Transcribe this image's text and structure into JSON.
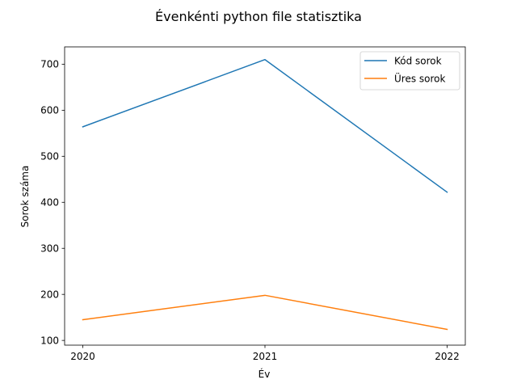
{
  "chart_data": {
    "type": "line",
    "title": "Évenkénti python file statisztika",
    "xlabel": "Év",
    "ylabel": "Sorok száma",
    "x": [
      "2020",
      "2021",
      "2022"
    ],
    "yticks": [
      100,
      200,
      300,
      400,
      500,
      600,
      700
    ],
    "ylim": [
      89.7,
      737.6
    ],
    "grid": false,
    "legend_position": "top-right",
    "series": [
      {
        "name": "Kód sorok",
        "color": "#1f77b4",
        "values": [
          564,
          710,
          422
        ]
      },
      {
        "name": "Üres sorok",
        "color": "#ff7f0e",
        "values": [
          145,
          198,
          124
        ]
      }
    ]
  }
}
